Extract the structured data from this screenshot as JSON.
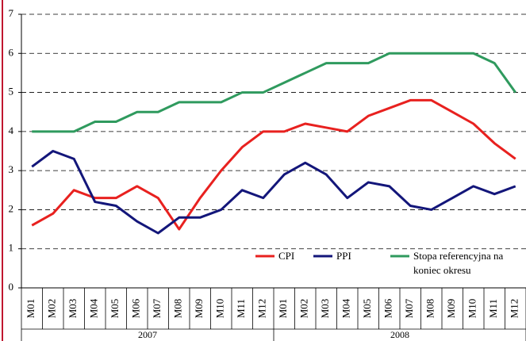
{
  "chart_data": {
    "type": "line",
    "categories": [
      "M01",
      "M02",
      "M03",
      "M04",
      "M05",
      "M06",
      "M07",
      "M08",
      "M09",
      "M10",
      "M11",
      "M12",
      "M01",
      "M02",
      "M03",
      "M04",
      "M05",
      "M06",
      "M07",
      "M08",
      "M09",
      "M10",
      "M11",
      "M12"
    ],
    "groups": [
      "2007",
      "2008"
    ],
    "series": [
      {
        "name": "CPI",
        "color": "#e8211f",
        "values": [
          1.6,
          1.9,
          2.5,
          2.3,
          2.3,
          2.6,
          2.3,
          1.5,
          2.3,
          3.0,
          3.6,
          4.0,
          4.0,
          4.2,
          4.1,
          4.0,
          4.4,
          4.6,
          4.8,
          4.8,
          4.5,
          4.2,
          3.7,
          3.3
        ]
      },
      {
        "name": "PPI",
        "color": "#13167a",
        "values": [
          3.1,
          3.5,
          3.3,
          2.2,
          2.1,
          1.7,
          1.4,
          1.8,
          1.8,
          2.0,
          2.5,
          2.3,
          2.9,
          3.2,
          2.9,
          2.3,
          2.7,
          2.6,
          2.1,
          2.0,
          2.3,
          2.6,
          2.4,
          2.6
        ]
      },
      {
        "name": "Stopa referencyjna na koniec okresu",
        "color": "#2f9a5e",
        "values": [
          4.0,
          4.0,
          4.0,
          4.25,
          4.25,
          4.5,
          4.5,
          4.75,
          4.75,
          4.75,
          5.0,
          5.0,
          5.25,
          5.5,
          5.75,
          5.75,
          5.75,
          6.0,
          6.0,
          6.0,
          6.0,
          6.0,
          5.75,
          5.0
        ]
      }
    ],
    "ylim": [
      0,
      7
    ],
    "yticks": [
      0,
      1,
      2,
      3,
      4,
      5,
      6,
      7
    ],
    "grid": true
  }
}
